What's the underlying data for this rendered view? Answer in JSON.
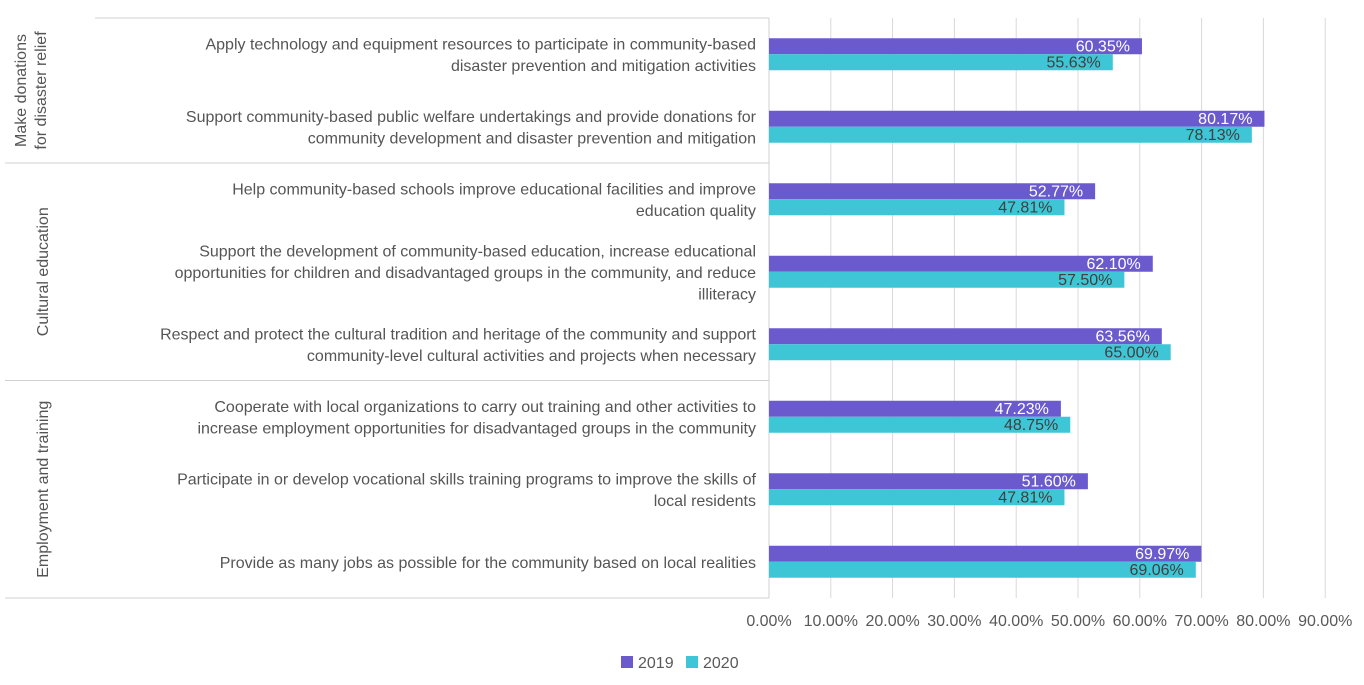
{
  "colors": {
    "s2019": "#6a5acd",
    "s2020": "#3ec6d6",
    "grid": "#d9d9d9",
    "frame": "#d0d0d0"
  },
  "chart_data": {
    "type": "bar",
    "orientation": "horizontal",
    "grid": true,
    "legend_position": "bottom",
    "xlim": [
      0,
      90
    ],
    "x_ticks": [
      "0.00%",
      "10.00%",
      "20.00%",
      "30.00%",
      "40.00%",
      "50.00%",
      "60.00%",
      "70.00%",
      "80.00%",
      "90.00%"
    ],
    "groups": [
      {
        "name": "Make donations for disaster relief",
        "lines": [
          "Make donations",
          "for disaster relief"
        ],
        "start": 0,
        "count": 2
      },
      {
        "name": "Cultural education",
        "lines": [
          "Cultural education"
        ],
        "start": 2,
        "count": 3
      },
      {
        "name": "Employment and training",
        "lines": [
          "Employment and training"
        ],
        "start": 5,
        "count": 3
      }
    ],
    "categories": [
      [
        "Apply technology and equipment resources to participate in community-based",
        "disaster prevention and mitigation activities"
      ],
      [
        "Support community-based public welfare undertakings and provide donations for",
        "community development and disaster prevention and mitigation"
      ],
      [
        "Help community-based schools improve educational facilities and improve",
        "education quality"
      ],
      [
        "Support the development of community-based education, increase educational",
        "opportunities for children and disadvantaged groups in the community, and reduce",
        "illiteracy"
      ],
      [
        "Respect and protect the cultural tradition and heritage of the community and support",
        "community-level cultural activities and projects when necessary"
      ],
      [
        "Cooperate with local organizations to carry out training and other activities to",
        "increase employment opportunities for disadvantaged groups in the community"
      ],
      [
        "Participate in or develop vocational skills training programs to improve the skills of",
        "local residents"
      ],
      [
        "Provide as many jobs as possible for the community based on local realities"
      ]
    ],
    "series": [
      {
        "name": "2019",
        "values": [
          60.35,
          80.17,
          52.77,
          62.1,
          63.56,
          47.23,
          51.6,
          69.97
        ],
        "labels": [
          "60.35%",
          "80.17%",
          "52.77%",
          "62.10%",
          "63.56%",
          "47.23%",
          "51.60%",
          "69.97%"
        ]
      },
      {
        "name": "2020",
        "values": [
          55.63,
          78.13,
          47.81,
          57.5,
          65.0,
          48.75,
          47.81,
          69.06
        ],
        "labels": [
          "55.63%",
          "78.13%",
          "47.81%",
          "57.50%",
          "65.00%",
          "48.75%",
          "47.81%",
          "69.06%"
        ]
      }
    ]
  }
}
